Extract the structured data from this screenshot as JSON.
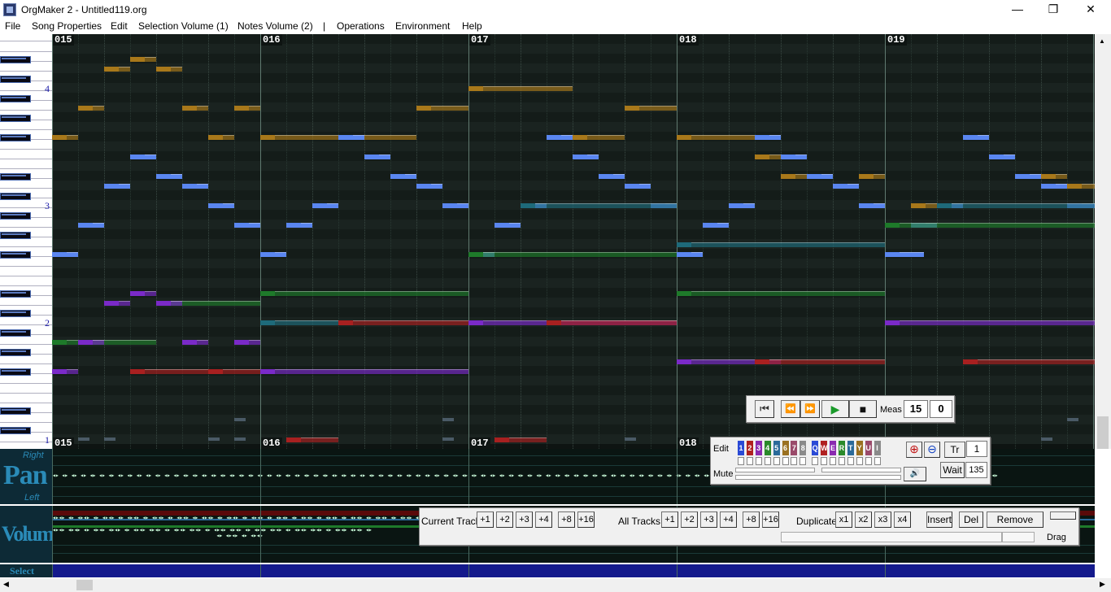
{
  "window": {
    "title": "OrgMaker 2  -  Untitled119.org",
    "minimize": "—",
    "maximize": "❐",
    "close": "✕"
  },
  "menu": [
    "File",
    "Song Properties",
    "Edit",
    "Selection Volume (1)",
    "Notes Volume (2)",
    "|",
    "Operations",
    "Environment",
    "Help"
  ],
  "piano": {
    "octave_labels": [
      "4",
      "3",
      "2",
      "1"
    ]
  },
  "measures": [
    "015",
    "016",
    "017",
    "018",
    "019"
  ],
  "side_labels": {
    "pan_right": "Right",
    "pan": "Pan",
    "pan_left": "Left",
    "volume": "Volume",
    "select": "Select"
  },
  "player": {
    "meas_label": "Meas",
    "meas_value": "15",
    "beat_value": "0",
    "icons": [
      "skip-to-start-icon",
      "rewind-icon",
      "fast-forward-icon",
      "play-icon",
      "stop-icon"
    ]
  },
  "track_panel": {
    "edit_label": "Edit",
    "mute_label": "Mute",
    "tracks": [
      "1",
      "2",
      "3",
      "4",
      "5",
      "6",
      "7",
      "8",
      "Q",
      "W",
      "E",
      "R",
      "T",
      "Y",
      "U",
      "I"
    ],
    "track_colors": [
      "#2a4ad6",
      "#b02020",
      "#8a2ab0",
      "#2a8a2a",
      "#2a6a9a",
      "#9a7020",
      "#9a4a6a",
      "#8a8a8a",
      "#2a4ad6",
      "#b02020",
      "#8a2ab0",
      "#2a8a2a",
      "#2a6a9a",
      "#9a7020",
      "#9a4a6a",
      "#8a8a8a"
    ],
    "tr_label": "Tr",
    "tr_value": "1",
    "wait_label": "Wait",
    "wait_value": "135"
  },
  "ops_panel": {
    "current_track_label": "Current Track",
    "current_track_buttons": [
      "+1",
      "+2",
      "+3",
      "+4",
      "+8",
      "+16"
    ],
    "all_tracks_label": "All Tracks",
    "all_tracks_buttons": [
      "+1",
      "+2",
      "+3",
      "+4",
      "+8",
      "+16"
    ],
    "duplicate_label": "Duplicate",
    "duplicate_buttons": [
      "x1",
      "x2",
      "x3",
      "x4"
    ],
    "insert_label": "Insert",
    "del_label": "Del",
    "remove_label": "Remove",
    "drag_label": "Drag"
  },
  "colors": {
    "blue_note": "#5a86f0",
    "gold_note": "#a8781a",
    "purple_note": "#7a2ac8",
    "red_note": "#a82020",
    "green_note": "#1e7a2a",
    "teal_note": "#1e6a7a"
  }
}
